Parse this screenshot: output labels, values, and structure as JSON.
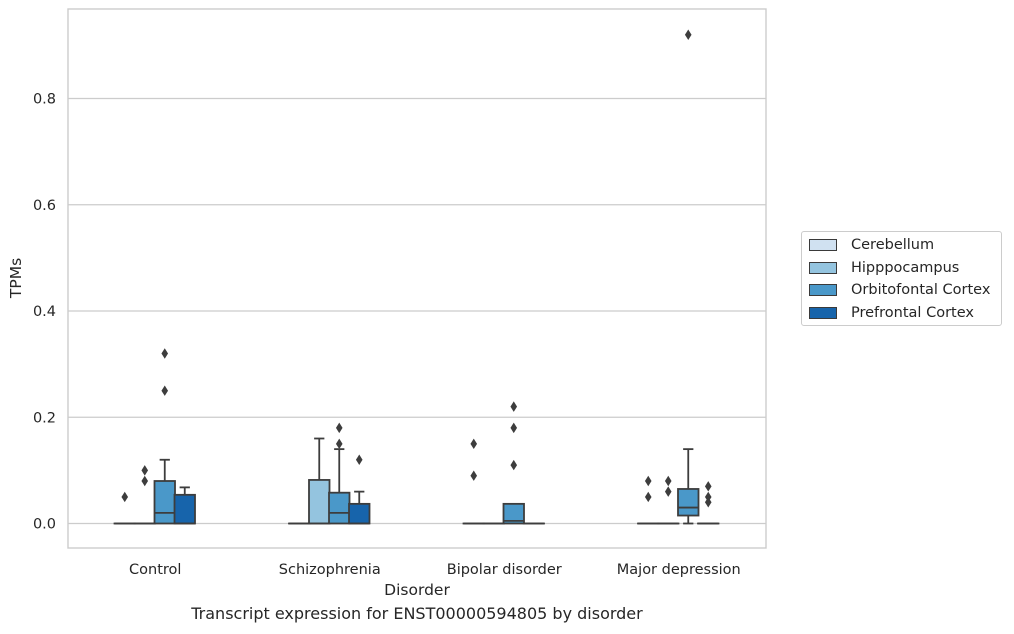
{
  "caption": "Transcript expression for ENST00000594805 by disorder",
  "chart_data": {
    "type": "box",
    "xlabel": "Disorder",
    "ylabel": "TPMs",
    "ylim": [
      -0.045,
      0.96
    ],
    "yticks": [
      0.0,
      0.2,
      0.4,
      0.6,
      0.8
    ],
    "ytick_labels": [
      "0.0",
      "0.2",
      "0.4",
      "0.6",
      "0.8"
    ],
    "grid": "horizontal",
    "legend_position": "right",
    "categories": [
      "Control",
      "Schizophrenia",
      "Bipolar disorder",
      "Major depression"
    ],
    "series": [
      {
        "name": "Cerebellum",
        "color": "#d0e1f1",
        "boxes": [
          {
            "q1": 0,
            "median": 0,
            "q3": 0,
            "whisker_low": 0,
            "whisker_high": 0,
            "outliers": [
              0.05
            ]
          },
          {
            "q1": 0,
            "median": 0,
            "q3": 0,
            "whisker_low": 0,
            "whisker_high": 0,
            "outliers": []
          },
          {
            "q1": 0,
            "median": 0,
            "q3": 0,
            "whisker_low": 0,
            "whisker_high": 0,
            "outliers": [
              0.09,
              0.15
            ]
          },
          {
            "q1": 0,
            "median": 0,
            "q3": 0,
            "whisker_low": 0,
            "whisker_high": 0,
            "outliers": [
              0.05,
              0.08
            ]
          }
        ]
      },
      {
        "name": "Hipppocampus",
        "color": "#94c4df",
        "boxes": [
          {
            "q1": 0,
            "median": 0,
            "q3": 0,
            "whisker_low": 0,
            "whisker_high": 0,
            "outliers": [
              0.08,
              0.1
            ]
          },
          {
            "q1": 0,
            "median": 0,
            "q3": 0.082,
            "whisker_low": 0,
            "whisker_high": 0.16,
            "outliers": []
          },
          {
            "q1": 0,
            "median": 0,
            "q3": 0,
            "whisker_low": 0,
            "whisker_high": 0,
            "outliers": []
          },
          {
            "q1": 0,
            "median": 0,
            "q3": 0,
            "whisker_low": 0,
            "whisker_high": 0,
            "outliers": [
              0.06,
              0.08
            ]
          }
        ]
      },
      {
        "name": "Orbitofontal Cortex",
        "color": "#4a98c9",
        "boxes": [
          {
            "q1": 0,
            "median": 0.02,
            "q3": 0.08,
            "whisker_low": 0,
            "whisker_high": 0.12,
            "outliers": [
              0.25,
              0.32
            ]
          },
          {
            "q1": 0,
            "median": 0.02,
            "q3": 0.058,
            "whisker_low": 0,
            "whisker_high": 0.14,
            "outliers": [
              0.15,
              0.18
            ]
          },
          {
            "q1": 0,
            "median": 0.005,
            "q3": 0.037,
            "whisker_low": 0,
            "whisker_high": 0.037,
            "outliers": [
              0.11,
              0.18,
              0.22
            ]
          },
          {
            "q1": 0.015,
            "median": 0.03,
            "q3": 0.065,
            "whisker_low": 0,
            "whisker_high": 0.14,
            "outliers": [
              0.92
            ]
          }
        ]
      },
      {
        "name": "Prefrontal Cortex",
        "color": "#1764ab",
        "boxes": [
          {
            "q1": 0,
            "median": 0,
            "q3": 0.054,
            "whisker_low": 0,
            "whisker_high": 0.068,
            "outliers": []
          },
          {
            "q1": 0,
            "median": 0,
            "q3": 0.037,
            "whisker_low": 0,
            "whisker_high": 0.06,
            "outliers": [
              0.12
            ]
          },
          {
            "q1": 0,
            "median": 0,
            "q3": 0,
            "whisker_low": 0,
            "whisker_high": 0,
            "outliers": []
          },
          {
            "q1": 0,
            "median": 0,
            "q3": 0,
            "whisker_low": 0,
            "whisker_high": 0,
            "outliers": [
              0.04,
              0.05,
              0.07
            ]
          }
        ]
      }
    ]
  }
}
